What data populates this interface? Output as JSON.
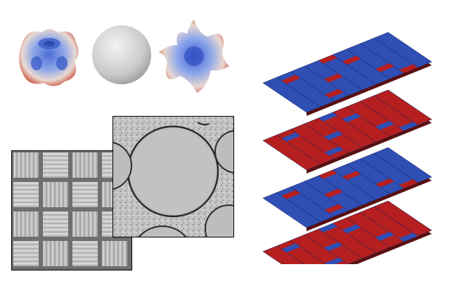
{
  "figure": {
    "shapes": [
      {
        "name": "cubic-harmonic-particle",
        "colormap": "blue-white-red"
      },
      {
        "name": "sphere-particle",
        "color": "#c8c8c8"
      },
      {
        "name": "star-harmonic-particle",
        "colormap": "blue-white-red"
      }
    ],
    "micrographs": [
      "woven-fabric-micrograph",
      "fiber-cross-section-micrograph"
    ],
    "layers": [
      {
        "name": "layer-1",
        "dominant_color": "#2f4fb5",
        "accent_color": "#b51f1f"
      },
      {
        "name": "layer-2",
        "dominant_color": "#b51f1f",
        "accent_color": "#2f4fb5"
      },
      {
        "name": "layer-3",
        "dominant_color": "#2f4fb5",
        "accent_color": "#b51f1f"
      },
      {
        "name": "layer-4",
        "dominant_color": "#b51f1f",
        "accent_color": "#2f4fb5"
      }
    ],
    "colors": {
      "blue": "#2f4fb5",
      "red": "#b51f1f",
      "white": "#f2f2f2",
      "gray": "#c8c8c8"
    }
  }
}
